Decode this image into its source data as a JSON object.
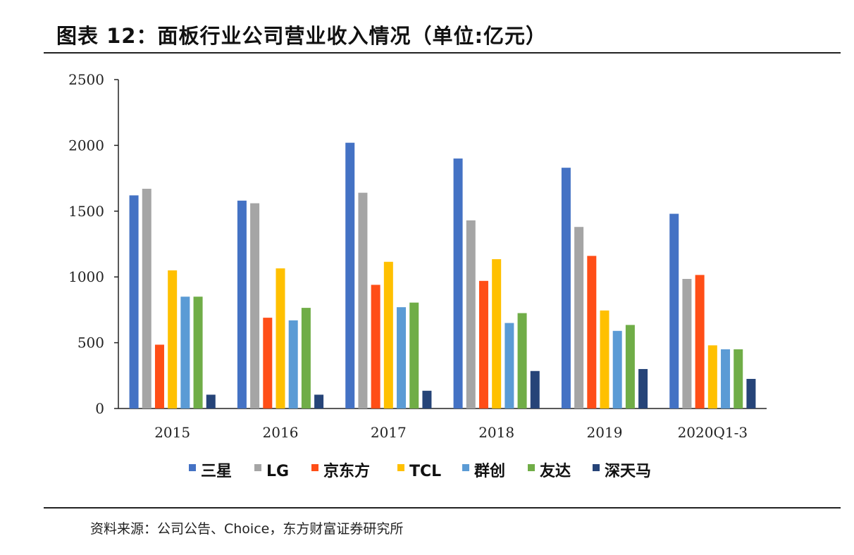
{
  "header": {
    "title": "图表 12：面板行业公司营业收入情况（单位:亿元）"
  },
  "footer": {
    "source": "资料来源：公司公告、Choice，东方财富证券研究所"
  },
  "chart_data": {
    "type": "bar",
    "title": "图表 12：面板行业公司营业收入情况（单位:亿元）",
    "xlabel": "",
    "ylabel": "",
    "categories": [
      "2015",
      "2016",
      "2017",
      "2018",
      "2019",
      "2020Q1-3"
    ],
    "ylim": [
      0,
      2500
    ],
    "yticks": [
      0,
      500,
      1000,
      1500,
      2000,
      2500
    ],
    "grid": false,
    "legend_position": "bottom",
    "series": [
      {
        "name": "三星",
        "color": "#4472C4",
        "values": [
          1620,
          1580,
          2020,
          1900,
          1830,
          1480
        ]
      },
      {
        "name": "LG",
        "color": "#A5A5A5",
        "values": [
          1670,
          1560,
          1640,
          1430,
          1380,
          985
        ]
      },
      {
        "name": "京东方",
        "color": "#FF4E17",
        "values": [
          485,
          690,
          940,
          970,
          1160,
          1015
        ]
      },
      {
        "name": "TCL",
        "color": "#FFC000",
        "values": [
          1050,
          1065,
          1115,
          1135,
          745,
          480
        ]
      },
      {
        "name": "群创",
        "color": "#5B9BD5",
        "values": [
          850,
          670,
          770,
          650,
          590,
          450
        ]
      },
      {
        "name": "友达",
        "color": "#70AD47",
        "values": [
          850,
          765,
          805,
          725,
          635,
          450
        ]
      },
      {
        "name": "深天马",
        "color": "#264478",
        "values": [
          105,
          105,
          135,
          285,
          300,
          225
        ]
      }
    ]
  }
}
